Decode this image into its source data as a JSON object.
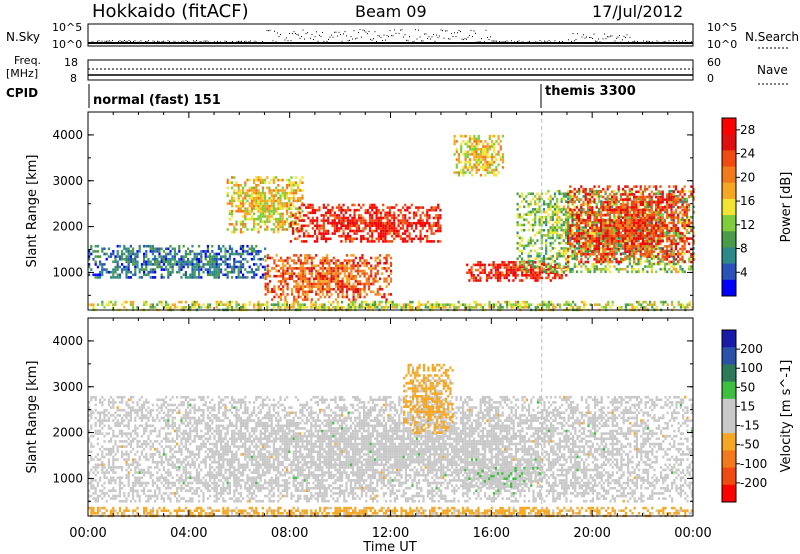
{
  "header": {
    "site": "Hokkaido (fitACF)",
    "beam": "Beam 09",
    "date": "17/Jul/2012"
  },
  "summary_panel": {
    "nsky_label": "N.Sky",
    "nsky_ticks": [
      "10^5",
      "10^0"
    ],
    "nsearch_label": "N.Search",
    "freq_label_1": "Freq.",
    "freq_label_2": "[MHz]",
    "freq_ticks": [
      "18",
      "8"
    ],
    "nave_ticks": [
      "60",
      "0"
    ],
    "nave_label": "Nave",
    "cpid_label": "CPID",
    "modes": [
      {
        "name": "normal (fast) 151",
        "start_hour": 0
      },
      {
        "name": "themis 3300",
        "start_hour": 18
      }
    ]
  },
  "colors": {
    "power_scale": [
      "#0000ff",
      "#2b52b8",
      "#2e8a8a",
      "#4a9b4a",
      "#7fcc3c",
      "#f2e531",
      "#f5a623",
      "#f27a1c",
      "#f04a10",
      "#e01010",
      "#ff0000"
    ],
    "velocity_scale": [
      "#1a1aaa",
      "#2a52a8",
      "#2d7a5a",
      "#3fbf3f",
      "#c8c8c8",
      "#c8c8c8",
      "#f5a623",
      "#f27a1c",
      "#f04a10",
      "#ff0000"
    ]
  },
  "chart_data": [
    {
      "type": "heatmap",
      "title": "",
      "xlabel": "Time UT",
      "ylabel": "Slant Range [km]",
      "xlim": [
        0,
        24
      ],
      "ylim": [
        180,
        4500
      ],
      "x_ticks": [
        "00:00",
        "04:00",
        "08:00",
        "12:00",
        "16:00",
        "20:00",
        "00:00"
      ],
      "y_ticks": [
        "1000",
        "2000",
        "3000",
        "4000"
      ],
      "colorbar": {
        "label": "Power [dB]",
        "ticks": [
          "4",
          "8",
          "12",
          "16",
          "20",
          "24",
          "28"
        ],
        "range": [
          0,
          30
        ]
      },
      "regions": [
        {
          "name": "near-range band",
          "t": [
            0,
            24
          ],
          "r": [
            200,
            380
          ],
          "value": 14
        },
        {
          "name": "evening F-region band",
          "t": [
            0,
            7
          ],
          "r": [
            900,
            1600
          ],
          "value": 6
        },
        {
          "name": "afternoon echo 1",
          "t": [
            5.5,
            8.5
          ],
          "r": [
            1900,
            3100
          ],
          "value": 16
        },
        {
          "name": "strong midday echo",
          "t": [
            8,
            14
          ],
          "r": [
            1700,
            2500
          ],
          "value": 26
        },
        {
          "name": "midday lower echo",
          "t": [
            7,
            12
          ],
          "r": [
            400,
            1400
          ],
          "value": 22
        },
        {
          "name": "afternoon 2",
          "t": [
            14.5,
            16.5
          ],
          "r": [
            3100,
            4000
          ],
          "value": 16
        },
        {
          "name": "evening strong echo",
          "t": [
            15,
            19
          ],
          "r": [
            850,
            1250
          ],
          "value": 26
        },
        {
          "name": "late evening band",
          "t": [
            17,
            24
          ],
          "r": [
            1000,
            2800
          ],
          "value": 12
        },
        {
          "name": "night echo",
          "t": [
            19,
            24
          ],
          "r": [
            1200,
            2900
          ],
          "value": 24
        }
      ]
    },
    {
      "type": "heatmap",
      "title": "",
      "xlabel": "Time UT",
      "ylabel": "Slant Range [km]",
      "xlim": [
        0,
        24
      ],
      "ylim": [
        180,
        4500
      ],
      "x_ticks": [
        "00:00",
        "04:00",
        "08:00",
        "12:00",
        "16:00",
        "20:00",
        "00:00"
      ],
      "y_ticks": [
        "1000",
        "2000",
        "3000",
        "4000"
      ],
      "colorbar": {
        "label": "Velocity [m s^-1]",
        "ticks": [
          "200",
          "100",
          "50",
          "15",
          "-15",
          "-50",
          "-100",
          "-200"
        ],
        "range": [
          -250,
          250
        ]
      },
      "regions": [
        {
          "name": "ground scatter band",
          "t": [
            0,
            24
          ],
          "r": [
            500,
            2800
          ],
          "value": 0
        },
        {
          "name": "afternoon positive",
          "t": [
            15,
            18
          ],
          "r": [
            850,
            1250
          ],
          "value": 40
        },
        {
          "name": "midday negative",
          "t": [
            12.5,
            14.5
          ],
          "r": [
            2000,
            3500
          ],
          "value": -60
        },
        {
          "name": "near-range negative",
          "t": [
            0,
            24
          ],
          "r": [
            200,
            380
          ],
          "value": -60
        }
      ]
    }
  ]
}
